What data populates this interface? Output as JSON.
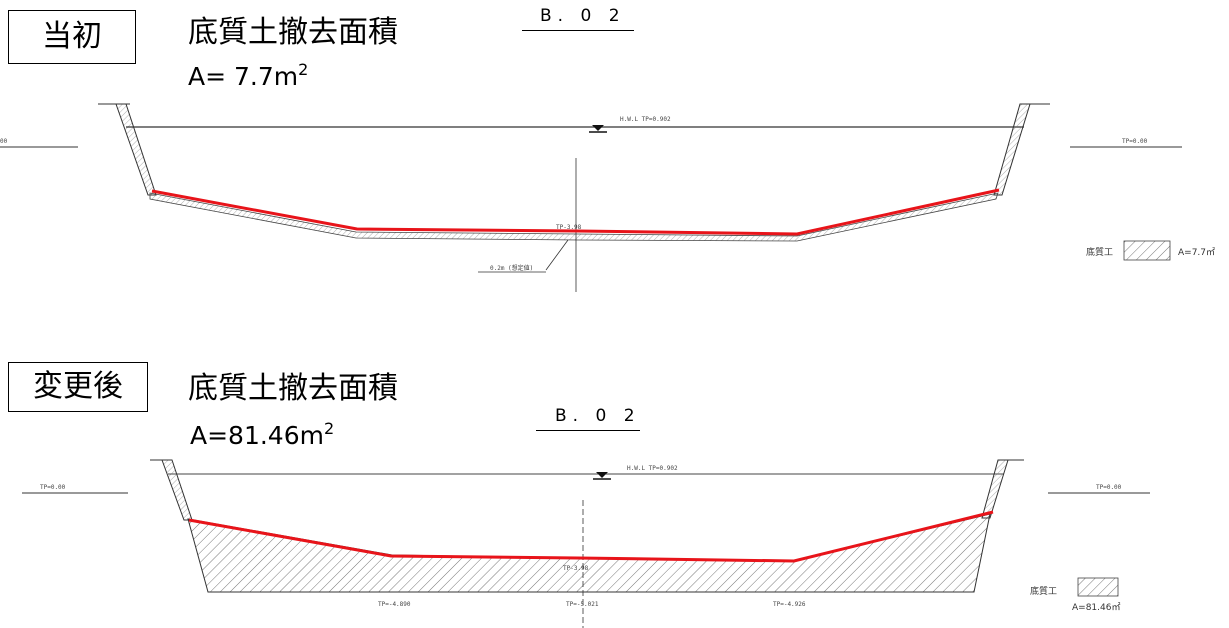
{
  "top": {
    "box_label": "当初",
    "heading": "底質土撤去面積",
    "area_prefix": "A= 7.7m",
    "area_sup": "2",
    "section_title": "B. 0 2",
    "wl_label": "H.W.L TP=0.902",
    "tp_left": "00",
    "tp_right": "TP=0.00",
    "tp_center": "TP-3.98",
    "thickness_note": "0.2m (想定値)",
    "legend_label": "底質工",
    "legend_area": "A=7.7㎡"
  },
  "bottom": {
    "box_label": "変更後",
    "heading": "底質土撤去面積",
    "area_prefix": "A=81.46m",
    "area_sup": "2",
    "section_title": "B. 0 2",
    "wl_label": "H.W.L TP=0.902",
    "tp_left": "TP=0.00",
    "tp_right": "TP=0.00",
    "tp_center": "TP-3.98",
    "tp_bottom_left": "TP=-4.890",
    "tp_bottom_center": "TP=-5.021",
    "tp_bottom_right": "TP=-4.926",
    "legend_label": "底質工",
    "legend_area": "A=81.46㎡"
  },
  "colors": {
    "red_line": "#e8141a",
    "drawing_line": "#333333"
  }
}
